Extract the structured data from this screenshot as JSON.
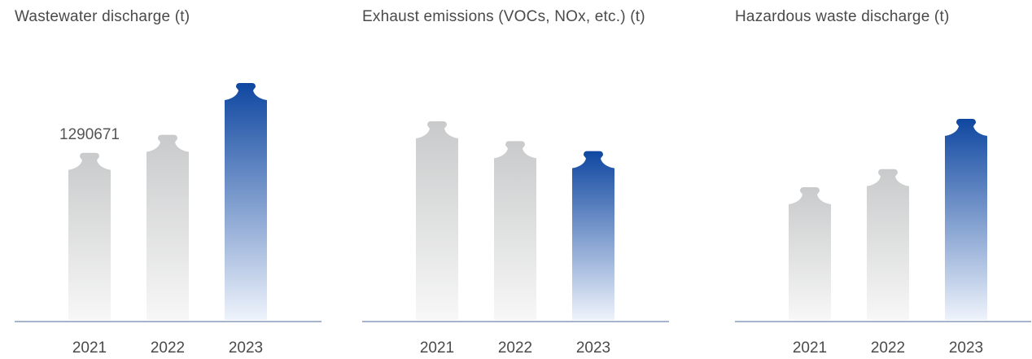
{
  "colors": {
    "gray_top": "#c9cacb",
    "gray_bottom": "#f7f7f7",
    "blue_top": "#0f47a1",
    "blue_bottom": "#eef3fb",
    "axis": "#6f86aa",
    "text": "#4a4a4a"
  },
  "chart_data": [
    {
      "type": "bar",
      "title": "Wastewater discharge (t)",
      "categories": [
        "2021",
        "2022",
        "2023"
      ],
      "values": [
        1290671,
        1430000,
        1830000
      ],
      "data_labels": [
        "1290671",
        "",
        ""
      ],
      "highlight_category": "2023",
      "xlabel": "",
      "ylabel": "",
      "grid": false
    },
    {
      "type": "bar",
      "title": "Exhaust emissions (VOCs, NOx, etc.) (t)",
      "categories": [
        "2021",
        "2022",
        "2023"
      ],
      "values": [
        1000,
        900,
        850
      ],
      "highlight_category": "2023",
      "xlabel": "",
      "ylabel": "",
      "grid": false
    },
    {
      "type": "bar",
      "title": "Hazardous waste discharge (t)",
      "categories": [
        "2021",
        "2022",
        "2023"
      ],
      "values": [
        660,
        750,
        1000
      ],
      "highlight_category": "2023",
      "xlabel": "",
      "ylabel": "",
      "grid": false
    }
  ]
}
